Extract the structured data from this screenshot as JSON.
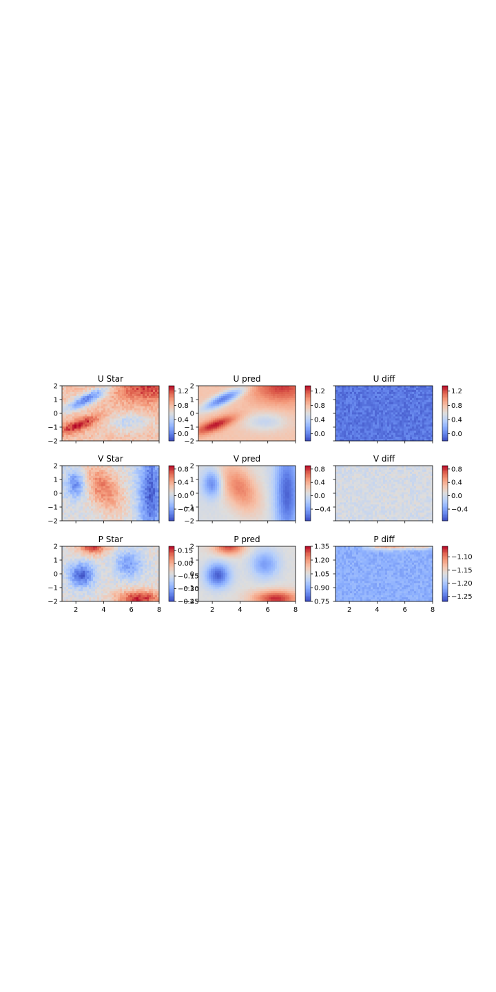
{
  "chart_data": [
    {
      "type": "heatmap",
      "title": "U Star",
      "field": "U",
      "kind": "star",
      "xlim": [
        1,
        8
      ],
      "ylim": [
        -2,
        2
      ],
      "xticks": [],
      "yticks": [
        "2",
        "1",
        "0",
        "−1",
        "−2"
      ],
      "color_range": [
        -0.2,
        1.35
      ],
      "colorbar_ticks": [
        "1.2",
        "0.8",
        "0.4",
        "0.0"
      ],
      "colorbar_values": [
        1.2,
        0.8,
        0.4,
        0.0
      ]
    },
    {
      "type": "heatmap",
      "title": "U pred",
      "field": "U",
      "kind": "pred",
      "xlim": [
        1,
        8
      ],
      "ylim": [
        -2,
        2
      ],
      "xticks": [],
      "yticks": [
        "2",
        "1",
        "0",
        "−1",
        "−2"
      ],
      "color_range": [
        -0.2,
        1.35
      ],
      "colorbar_ticks": [
        "1.2",
        "0.8",
        "0.4",
        "0.0"
      ],
      "colorbar_values": [
        1.2,
        0.8,
        0.4,
        0.0
      ]
    },
    {
      "type": "heatmap",
      "title": "U diff",
      "field": "U",
      "kind": "diff",
      "xlim": [
        1,
        8
      ],
      "ylim": [
        -2,
        2
      ],
      "xticks": [],
      "yticks": [],
      "color_range": [
        -0.2,
        1.35
      ],
      "colorbar_ticks": [
        "1.2",
        "0.8",
        "0.4",
        "0.0"
      ],
      "colorbar_values": [
        1.2,
        0.8,
        0.4,
        0.0
      ]
    },
    {
      "type": "heatmap",
      "title": "V Star",
      "field": "V",
      "kind": "star",
      "xlim": [
        1,
        8
      ],
      "ylim": [
        -2,
        2
      ],
      "xticks": [],
      "yticks": [
        "2",
        "1",
        "0",
        "−1",
        "−2"
      ],
      "color_range": [
        -0.75,
        0.9
      ],
      "colorbar_ticks": [
        "0.8",
        "0.4",
        "0.0",
        "−0.4"
      ],
      "colorbar_values": [
        0.8,
        0.4,
        0.0,
        -0.4
      ]
    },
    {
      "type": "heatmap",
      "title": "V pred",
      "field": "V",
      "kind": "pred",
      "xlim": [
        1,
        8
      ],
      "ylim": [
        -2,
        2
      ],
      "xticks": [],
      "yticks": [
        "2",
        "1",
        "0",
        "−1",
        "−2"
      ],
      "color_range": [
        -0.75,
        0.9
      ],
      "colorbar_ticks": [
        "0.8",
        "0.4",
        "0.0",
        "−0.4"
      ],
      "colorbar_values": [
        0.8,
        0.4,
        0.0,
        -0.4
      ]
    },
    {
      "type": "heatmap",
      "title": "V diff",
      "field": "V",
      "kind": "diff",
      "xlim": [
        1,
        8
      ],
      "ylim": [
        -2,
        2
      ],
      "xticks": [],
      "yticks": [],
      "color_range": [
        -0.75,
        0.9
      ],
      "colorbar_ticks": [
        "0.8",
        "0.4",
        "0.0",
        "−0.4"
      ],
      "colorbar_values": [
        0.8,
        0.4,
        0.0,
        -0.4
      ]
    },
    {
      "type": "heatmap",
      "title": "P Star",
      "field": "P",
      "kind": "star",
      "xlim": [
        1,
        8
      ],
      "ylim": [
        -2,
        2
      ],
      "xticks": [
        "2",
        "4",
        "6",
        "8"
      ],
      "yticks": [
        "2",
        "1",
        "0",
        "−1",
        "−2"
      ],
      "color_range": [
        -0.45,
        0.2
      ],
      "colorbar_ticks": [
        "0.15",
        "0.00",
        "−0.15",
        "−0.30",
        "−0.45"
      ],
      "colorbar_values": [
        0.15,
        0.0,
        -0.15,
        -0.3,
        -0.45
      ]
    },
    {
      "type": "heatmap",
      "title": "P pred",
      "field": "P",
      "kind": "pred",
      "xlim": [
        1,
        8
      ],
      "ylim": [
        -2,
        2
      ],
      "xticks": [
        "2",
        "4",
        "6",
        "8"
      ],
      "yticks": [
        "2",
        "1",
        "0",
        "−1",
        "−2"
      ],
      "color_range": [
        0.75,
        1.35
      ],
      "colorbar_ticks": [
        "1.35",
        "1.20",
        "1.05",
        "0.90",
        "0.75"
      ],
      "colorbar_values": [
        1.35,
        1.2,
        1.05,
        0.9,
        0.75
      ]
    },
    {
      "type": "heatmap",
      "title": "P diff",
      "field": "P",
      "kind": "diff",
      "xlim": [
        1,
        8
      ],
      "ylim": [
        -2,
        2
      ],
      "xticks": [
        "2",
        "4",
        "6",
        "8"
      ],
      "yticks": [],
      "color_range": [
        -1.27,
        -1.06
      ],
      "colorbar_ticks": [
        "−1.10",
        "−1.15",
        "−1.20",
        "−1.25"
      ],
      "colorbar_values": [
        -1.1,
        -1.15,
        -1.2,
        -1.25
      ]
    }
  ],
  "colormap": "coolwarm",
  "colors": {
    "low": "#3b4cc0",
    "mid": "#dddddd",
    "high": "#b40426"
  }
}
